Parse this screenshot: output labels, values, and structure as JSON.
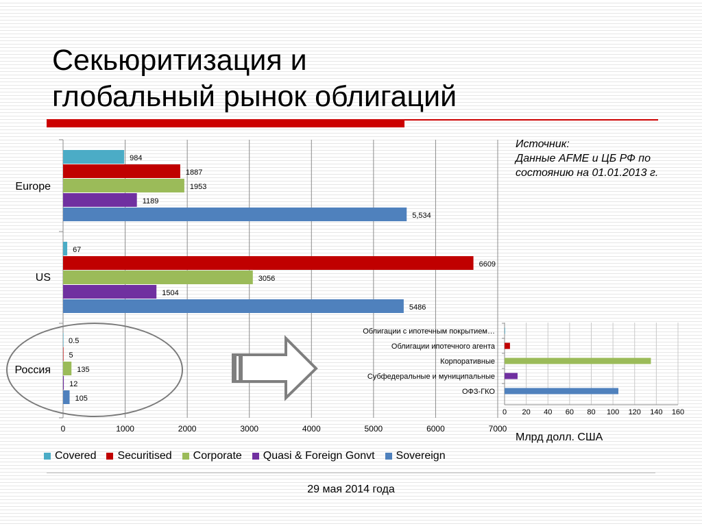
{
  "title": {
    "line1": "Секьюритизация и",
    "line2": "глобальный рынок облигаций"
  },
  "source": {
    "line1": "Источник:",
    "line2": "Данные AFME и ЦБ РФ по",
    "line3": "состоянию на 01.01.2013 г."
  },
  "colors": {
    "covered": "#4bacc6",
    "securitised": "#c00000",
    "corporate": "#9bbb59",
    "quasi": "#7030a0",
    "sovereign": "#4f81bd",
    "title_rule": "#cc0000"
  },
  "chart_data": [
    {
      "type": "bar",
      "orientation": "horizontal",
      "categories": [
        "Europe",
        "US",
        "Россия"
      ],
      "series": [
        {
          "name": "Covered",
          "values": [
            984,
            67,
            0.5
          ],
          "labels": [
            "984",
            "67",
            "0.5"
          ]
        },
        {
          "name": "Securitised",
          "values": [
            1887,
            6609,
            5
          ],
          "labels": [
            "1887",
            "6609",
            "5"
          ]
        },
        {
          "name": "Corporate",
          "values": [
            1953,
            3056,
            135
          ],
          "labels": [
            "1953",
            "3056",
            "135"
          ]
        },
        {
          "name": "Quasi & Foreign Gonvt",
          "values": [
            1189,
            1504,
            12
          ],
          "labels": [
            "1189",
            "1504",
            "12"
          ]
        },
        {
          "name": "Sovereign",
          "values": [
            5534,
            5486,
            105
          ],
          "labels": [
            "5,534",
            "5486",
            "105"
          ]
        }
      ],
      "xticks": [
        "0",
        "1000",
        "2000",
        "3000",
        "4000",
        "5000",
        "6000",
        "7000"
      ],
      "xlim": [
        0,
        7000
      ],
      "grid": true,
      "legend": "bottom"
    },
    {
      "type": "bar",
      "orientation": "horizontal",
      "categories": [
        "Облигации с ипотечным покрытием…",
        "Облигации ипотечного агента",
        "Корпоративные",
        "Субфедеральные и муниципальные",
        "ОФЗ-ГКО"
      ],
      "values": [
        0.5,
        5,
        135,
        12,
        105
      ],
      "xticks": [
        "0",
        "20",
        "40",
        "60",
        "80",
        "100",
        "120",
        "140",
        "160"
      ],
      "xlim": [
        0,
        160
      ],
      "xlabel": "Млрд долл. США",
      "grid": true
    }
  ],
  "footer": {
    "date": "29 мая 2014 года"
  }
}
